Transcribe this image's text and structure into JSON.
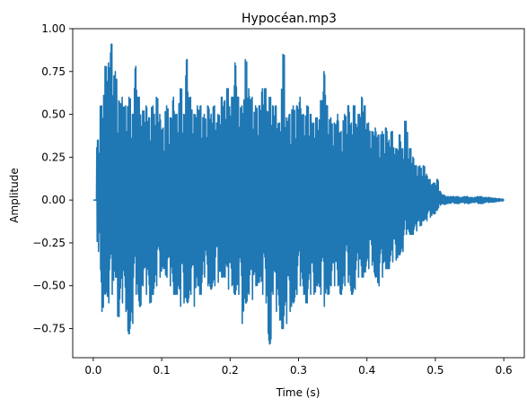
{
  "chart_data": {
    "type": "line",
    "title": "Hypocéan.mp3",
    "xlabel": "Time (s)",
    "ylabel": "Amplitude",
    "xlim": [
      -0.03,
      0.63
    ],
    "ylim": [
      -0.92,
      1.0
    ],
    "xticks": [
      0.0,
      0.1,
      0.2,
      0.3,
      0.4,
      0.5,
      0.6
    ],
    "xtick_labels": [
      "0.0",
      "0.1",
      "0.2",
      "0.3",
      "0.4",
      "0.5",
      "0.6"
    ],
    "yticks": [
      -0.75,
      -0.5,
      -0.25,
      0.0,
      0.25,
      0.5,
      0.75,
      1.0
    ],
    "ytick_labels": [
      "−0.75",
      "−0.50",
      "−0.25",
      "0.00",
      "0.25",
      "0.50",
      "0.75",
      "1.00"
    ],
    "grid": false,
    "series": [
      {
        "color": "#1f77b4",
        "x": [
          0.0,
          0.005,
          0.01,
          0.015,
          0.02,
          0.025,
          0.03,
          0.035,
          0.04,
          0.045,
          0.05,
          0.055,
          0.06,
          0.065,
          0.07,
          0.075,
          0.08,
          0.085,
          0.09,
          0.095,
          0.1,
          0.105,
          0.11,
          0.115,
          0.12,
          0.125,
          0.13,
          0.135,
          0.14,
          0.145,
          0.15,
          0.155,
          0.16,
          0.165,
          0.17,
          0.175,
          0.18,
          0.185,
          0.19,
          0.195,
          0.2,
          0.205,
          0.21,
          0.215,
          0.22,
          0.225,
          0.23,
          0.235,
          0.24,
          0.245,
          0.25,
          0.255,
          0.26,
          0.265,
          0.27,
          0.275,
          0.28,
          0.285,
          0.29,
          0.295,
          0.3,
          0.305,
          0.31,
          0.315,
          0.32,
          0.325,
          0.33,
          0.335,
          0.34,
          0.345,
          0.35,
          0.355,
          0.36,
          0.365,
          0.37,
          0.375,
          0.38,
          0.385,
          0.39,
          0.395,
          0.4,
          0.405,
          0.41,
          0.415,
          0.42,
          0.425,
          0.43,
          0.435,
          0.44,
          0.445,
          0.45,
          0.455,
          0.46,
          0.465,
          0.47,
          0.475,
          0.48,
          0.485,
          0.49,
          0.495,
          0.5,
          0.505,
          0.51,
          0.515,
          0.52,
          0.525,
          0.53,
          0.535,
          0.54,
          0.545,
          0.55,
          0.555,
          0.56,
          0.565,
          0.57,
          0.575,
          0.58,
          0.585,
          0.59,
          0.595
        ],
        "upper": [
          0.0,
          0.35,
          0.55,
          0.78,
          0.8,
          0.91,
          0.75,
          0.58,
          0.6,
          0.55,
          0.6,
          0.5,
          0.78,
          0.6,
          0.52,
          0.55,
          0.48,
          0.55,
          0.6,
          0.5,
          0.42,
          0.55,
          0.48,
          0.6,
          0.5,
          0.65,
          0.5,
          0.82,
          0.6,
          0.5,
          0.55,
          0.55,
          0.5,
          0.55,
          0.5,
          0.55,
          0.5,
          0.6,
          0.58,
          0.65,
          0.6,
          0.8,
          0.6,
          0.55,
          0.82,
          0.65,
          0.6,
          0.55,
          0.55,
          0.65,
          0.65,
          0.6,
          0.55,
          0.55,
          0.45,
          0.85,
          0.48,
          0.5,
          0.55,
          0.55,
          0.6,
          0.5,
          0.55,
          0.5,
          0.45,
          0.48,
          0.58,
          0.75,
          0.55,
          0.48,
          0.45,
          0.5,
          0.4,
          0.5,
          0.55,
          0.45,
          0.55,
          0.5,
          0.6,
          0.55,
          0.45,
          0.4,
          0.42,
          0.38,
          0.4,
          0.42,
          0.35,
          0.4,
          0.3,
          0.38,
          0.3,
          0.46,
          0.3,
          0.25,
          0.2,
          0.2,
          0.2,
          0.15,
          0.12,
          0.1,
          0.12,
          0.05,
          0.03,
          0.02,
          0.02,
          0.02,
          0.02,
          0.015,
          0.02,
          0.02,
          0.015,
          0.015,
          0.02,
          0.02,
          0.015,
          0.015,
          0.012,
          0.01,
          0.008,
          0.005
        ],
        "lower": [
          0.0,
          -0.3,
          -0.65,
          -0.55,
          -0.6,
          -0.55,
          -0.45,
          -0.68,
          -0.6,
          -0.65,
          -0.78,
          -0.72,
          -0.55,
          -0.62,
          -0.5,
          -0.55,
          -0.6,
          -0.55,
          -0.5,
          -0.45,
          -0.4,
          -0.45,
          -0.5,
          -0.55,
          -0.55,
          -0.62,
          -0.6,
          -0.6,
          -0.55,
          -0.62,
          -0.5,
          -0.55,
          -0.45,
          -0.5,
          -0.52,
          -0.5,
          -0.48,
          -0.45,
          -0.45,
          -0.52,
          -0.5,
          -0.55,
          -0.55,
          -0.72,
          -0.6,
          -0.55,
          -0.58,
          -0.5,
          -0.48,
          -0.55,
          -0.6,
          -0.84,
          -0.55,
          -0.65,
          -0.7,
          -0.75,
          -0.72,
          -0.65,
          -0.6,
          -0.55,
          -0.5,
          -0.55,
          -0.6,
          -0.55,
          -0.55,
          -0.5,
          -0.55,
          -0.62,
          -0.55,
          -0.5,
          -0.5,
          -0.5,
          -0.55,
          -0.5,
          -0.48,
          -0.55,
          -0.52,
          -0.45,
          -0.45,
          -0.42,
          -0.4,
          -0.38,
          -0.45,
          -0.5,
          -0.45,
          -0.4,
          -0.4,
          -0.36,
          -0.35,
          -0.32,
          -0.3,
          -0.2,
          -0.2,
          -0.2,
          -0.18,
          -0.15,
          -0.12,
          -0.12,
          -0.1,
          -0.08,
          -0.06,
          -0.03,
          -0.025,
          -0.02,
          -0.02,
          -0.02,
          -0.02,
          -0.015,
          -0.02,
          -0.02,
          -0.015,
          -0.015,
          -0.02,
          -0.02,
          -0.015,
          -0.015,
          -0.012,
          -0.01,
          -0.008,
          -0.005
        ]
      }
    ]
  }
}
